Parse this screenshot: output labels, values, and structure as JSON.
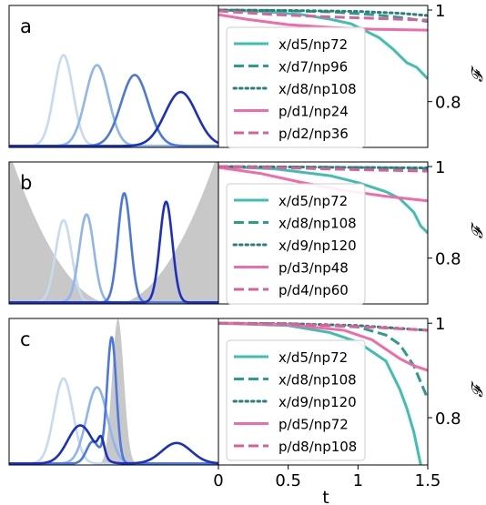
{
  "chart_data": [
    {
      "panel": "a",
      "type": "line",
      "role": "wavepacket-snapshots",
      "potential": "none",
      "colors": [
        "#c6dbef",
        "#8fb4ee",
        "#4a78e0",
        "#1a30c4"
      ],
      "packets": [
        {
          "components": [
            {
              "center": 0.26,
              "width": 0.045,
              "height": 0.64
            }
          ]
        },
        {
          "components": [
            {
              "center": 0.42,
              "width": 0.055,
              "height": 0.57
            }
          ]
        },
        {
          "components": [
            {
              "center": 0.6,
              "width": 0.065,
              "height": 0.5
            }
          ]
        },
        {
          "components": [
            {
              "center": 0.82,
              "width": 0.075,
              "height": 0.38
            }
          ]
        }
      ]
    },
    {
      "panel": "b",
      "type": "line",
      "role": "wavepacket-snapshots",
      "potential": "harmonic",
      "colors": [
        "#c6dbef",
        "#8fb4ee",
        "#4a78e0",
        "#1a30c4"
      ],
      "packets": [
        {
          "components": [
            {
              "center": 0.26,
              "width": 0.038,
              "height": 0.58
            }
          ]
        },
        {
          "components": [
            {
              "center": 0.37,
              "width": 0.035,
              "height": 0.62
            }
          ]
        },
        {
          "components": [
            {
              "center": 0.55,
              "width": 0.03,
              "height": 0.77
            }
          ]
        },
        {
          "components": [
            {
              "center": 0.75,
              "width": 0.03,
              "height": 0.71
            }
          ]
        }
      ]
    },
    {
      "panel": "c",
      "type": "line",
      "role": "wavepacket-snapshots",
      "potential": "barrier",
      "barrier_center": 0.52,
      "colors": [
        "#c6dbef",
        "#8fb4ee",
        "#4a78e0",
        "#1a30c4"
      ],
      "packets": [
        {
          "components": [
            {
              "center": 0.26,
              "width": 0.045,
              "height": 0.58
            }
          ]
        },
        {
          "components": [
            {
              "center": 0.42,
              "width": 0.05,
              "height": 0.52
            }
          ]
        },
        {
          "components": [
            {
              "center": 0.49,
              "width": 0.022,
              "height": 0.86
            },
            {
              "center": 0.4,
              "width": 0.03,
              "height": 0.15
            }
          ]
        },
        {
          "components": [
            {
              "center": 0.34,
              "width": 0.06,
              "height": 0.26
            },
            {
              "center": 0.44,
              "width": 0.015,
              "height": 0.12
            },
            {
              "center": 0.8,
              "width": 0.07,
              "height": 0.14
            }
          ]
        }
      ]
    },
    {
      "panel": "a",
      "type": "line",
      "xlim": [
        0,
        1.5
      ],
      "ylim": [
        0.7,
        1.01
      ],
      "yticks": [
        0.8,
        1.0
      ],
      "ylabel": "𝓕",
      "legend": "inside-left",
      "series": [
        {
          "name": "x/d5/np72",
          "color": "#40bfb0",
          "dash": "solid",
          "x": [
            0,
            0.3,
            0.6,
            0.8,
            0.95,
            1.05,
            1.15,
            1.25,
            1.35,
            1.42,
            1.5
          ],
          "y": [
            1.0,
            0.997,
            0.99,
            0.98,
            0.97,
            0.955,
            0.94,
            0.915,
            0.885,
            0.875,
            0.85
          ]
        },
        {
          "name": "x/d7/np96",
          "color": "#2a9d8f",
          "dash": "dashed",
          "x": [
            0,
            0.4,
            0.8,
            1.1,
            1.3,
            1.5
          ],
          "y": [
            1.0,
            0.999,
            0.996,
            0.99,
            0.984,
            0.975
          ]
        },
        {
          "name": "x/d8/np108",
          "color": "#2a7f7a",
          "dash": "dotted",
          "x": [
            0,
            0.5,
            1.0,
            1.3,
            1.5
          ],
          "y": [
            1.0,
            0.999,
            0.997,
            0.993,
            0.988
          ]
        },
        {
          "name": "p/d1/np24",
          "color": "#f06ba8",
          "dash": "solid",
          "x": [
            0,
            0.2,
            0.5,
            0.8,
            1.1,
            1.5
          ],
          "y": [
            0.99,
            0.98,
            0.968,
            0.962,
            0.958,
            0.956
          ]
        },
        {
          "name": "p/d2/np36",
          "color": "#d9609a",
          "dash": "dashed",
          "x": [
            0,
            0.4,
            0.8,
            1.2,
            1.5
          ],
          "y": [
            0.998,
            0.99,
            0.985,
            0.981,
            0.978
          ]
        }
      ]
    },
    {
      "panel": "b",
      "type": "line",
      "xlim": [
        0,
        1.5
      ],
      "ylim": [
        0.7,
        1.01
      ],
      "yticks": [
        0.8,
        1.0
      ],
      "ylabel": "𝓕",
      "legend": "inside-left",
      "series": [
        {
          "name": "x/d5/np72",
          "color": "#40bfb0",
          "dash": "solid",
          "x": [
            0,
            0.4,
            0.8,
            1.0,
            1.1,
            1.2,
            1.3,
            1.4,
            1.45,
            1.5
          ],
          "y": [
            1.0,
            0.995,
            0.98,
            0.965,
            0.955,
            0.945,
            0.93,
            0.9,
            0.87,
            0.855
          ]
        },
        {
          "name": "x/d8/np108",
          "color": "#2a9d8f",
          "dash": "dashed",
          "x": [
            0,
            0.5,
            1.0,
            1.5
          ],
          "y": [
            1.0,
            0.999,
            0.998,
            0.996
          ]
        },
        {
          "name": "x/d9/np120",
          "color": "#2a7f7a",
          "dash": "dotted",
          "x": [
            0,
            0.5,
            1.0,
            1.5
          ],
          "y": [
            1.0,
            0.999,
            0.998,
            0.997
          ]
        },
        {
          "name": "p/d3/np48",
          "color": "#f06ba8",
          "dash": "solid",
          "x": [
            0,
            0.3,
            0.6,
            0.9,
            1.2,
            1.5
          ],
          "y": [
            0.998,
            0.985,
            0.965,
            0.948,
            0.935,
            0.925
          ]
        },
        {
          "name": "p/d4/np60",
          "color": "#d9609a",
          "dash": "dashed",
          "x": [
            0,
            0.5,
            1.0,
            1.5
          ],
          "y": [
            1.0,
            0.997,
            0.993,
            0.99
          ]
        }
      ]
    },
    {
      "panel": "c",
      "type": "line",
      "xlim": [
        0,
        1.5
      ],
      "ylim": [
        0.7,
        1.01
      ],
      "yticks": [
        0.8,
        1.0
      ],
      "xticks": [
        0.0,
        0.5,
        1.0,
        1.5
      ],
      "xlabel": "t",
      "ylabel": "𝓕",
      "legend": "inside-left",
      "series": [
        {
          "name": "x/d5/np72",
          "color": "#40bfb0",
          "dash": "solid",
          "x": [
            0,
            0.5,
            0.8,
            1.0,
            1.1,
            1.2,
            1.25,
            1.3,
            1.35,
            1.4,
            1.45
          ],
          "y": [
            1.0,
            0.995,
            0.98,
            0.96,
            0.94,
            0.92,
            0.89,
            0.86,
            0.82,
            0.77,
            0.7
          ]
        },
        {
          "name": "x/d8/np108",
          "color": "#2a9d8f",
          "dash": "dashed",
          "x": [
            0,
            0.5,
            1.0,
            1.2,
            1.3,
            1.4,
            1.5
          ],
          "y": [
            1.0,
            0.999,
            0.992,
            0.975,
            0.955,
            0.91,
            0.84
          ]
        },
        {
          "name": "x/d9/np120",
          "color": "#2a7f7a",
          "dash": "dotted",
          "x": [
            0,
            0.5,
            1.0,
            1.5
          ],
          "y": [
            1.0,
            0.999,
            0.995,
            0.985
          ]
        },
        {
          "name": "p/d5/np72",
          "color": "#f06ba8",
          "dash": "solid",
          "x": [
            0,
            0.5,
            0.9,
            1.1,
            1.2,
            1.3,
            1.4,
            1.5
          ],
          "y": [
            1.0,
            0.997,
            0.985,
            0.965,
            0.945,
            0.925,
            0.91,
            0.9
          ]
        },
        {
          "name": "p/d8/np108",
          "color": "#d9609a",
          "dash": "dashed",
          "x": [
            0,
            0.5,
            1.0,
            1.5
          ],
          "y": [
            1.0,
            0.998,
            0.993,
            0.985
          ]
        }
      ]
    }
  ]
}
